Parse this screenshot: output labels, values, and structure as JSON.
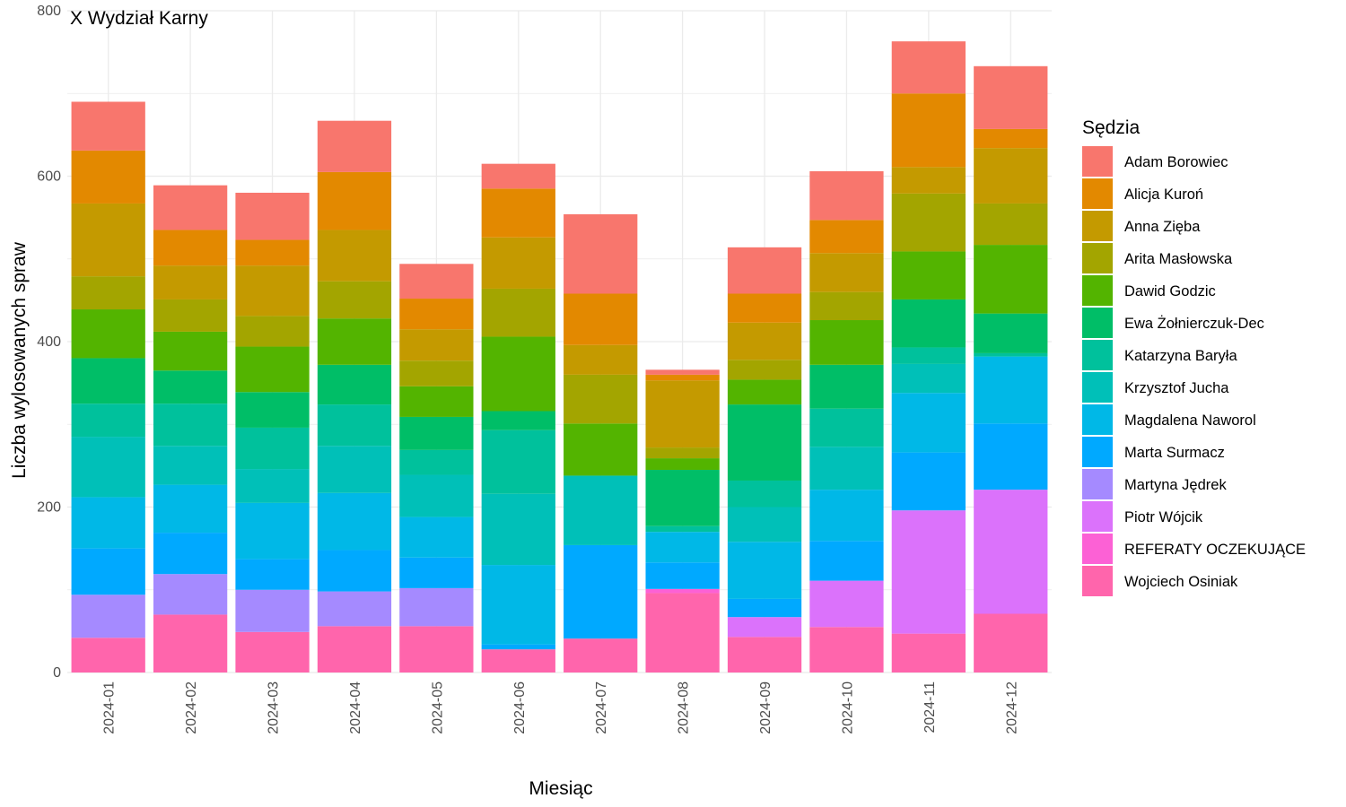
{
  "chart_data": {
    "type": "bar",
    "stacked": true,
    "title": "X Wydział Karny",
    "xlabel": "Miesiąc",
    "ylabel": "Liczba wylosowanych spraw",
    "ylim": [
      0,
      800
    ],
    "yticks": [
      0,
      200,
      400,
      600,
      800
    ],
    "grid": true,
    "legend_title": "Sędzia",
    "legend_position": "right",
    "categories": [
      "2024-01",
      "2024-02",
      "2024-03",
      "2024-04",
      "2024-05",
      "2024-06",
      "2024-07",
      "2024-08",
      "2024-09",
      "2024-10",
      "2024-11",
      "2024-12"
    ],
    "series": [
      {
        "name": "Wojciech Osiniak",
        "color": "#FF65AC",
        "values": [
          42,
          70,
          49,
          56,
          56,
          28,
          41,
          96,
          43,
          55,
          47,
          71
        ]
      },
      {
        "name": "REFERATY OCZEKUJĄCE",
        "color": "#FC61D5",
        "values": [
          0,
          0,
          0,
          0,
          0,
          0,
          0,
          5,
          0,
          0,
          0,
          0
        ]
      },
      {
        "name": "Piotr Wójcik",
        "color": "#DB72FB",
        "values": [
          0,
          0,
          0,
          0,
          0,
          0,
          0,
          0,
          24,
          56,
          149,
          150
        ]
      },
      {
        "name": "Martyna Jędrek",
        "color": "#A58AFF",
        "values": [
          52,
          49,
          51,
          42,
          46,
          0,
          0,
          0,
          0,
          0,
          0,
          0
        ]
      },
      {
        "name": "Marta Surmacz",
        "color": "#00A9FF",
        "values": [
          56,
          50,
          37,
          50,
          37,
          6,
          113,
          32,
          22,
          48,
          70,
          80
        ]
      },
      {
        "name": "Magdalena Naworol",
        "color": "#00B8E7",
        "values": [
          62,
          58,
          68,
          69,
          49,
          96,
          0,
          37,
          69,
          62,
          72,
          81
        ]
      },
      {
        "name": "Krzysztof Jucha",
        "color": "#00C0B8",
        "values": [
          73,
          47,
          41,
          57,
          51,
          86,
          84,
          0,
          42,
          52,
          35,
          0
        ]
      },
      {
        "name": "Katarzyna Baryła",
        "color": "#00C19C",
        "values": [
          40,
          51,
          50,
          50,
          30,
          77,
          0,
          7,
          32,
          46,
          20,
          4
        ]
      },
      {
        "name": "Ewa Żołnierczuk-Dec",
        "color": "#00BE67",
        "values": [
          55,
          40,
          43,
          48,
          40,
          23,
          0,
          68,
          92,
          53,
          58,
          48
        ]
      },
      {
        "name": "Dawid Godzic",
        "color": "#53B400",
        "values": [
          59,
          47,
          55,
          56,
          37,
          90,
          63,
          14,
          30,
          54,
          58,
          83
        ]
      },
      {
        "name": "Arita Masłowska",
        "color": "#A3A500",
        "values": [
          40,
          39,
          37,
          45,
          31,
          58,
          59,
          13,
          24,
          34,
          70,
          50
        ]
      },
      {
        "name": "Anna Zięba",
        "color": "#C49A00",
        "values": [
          88,
          41,
          61,
          62,
          38,
          62,
          36,
          81,
          45,
          47,
          32,
          67
        ]
      },
      {
        "name": "Alicja Kuroń",
        "color": "#E38900",
        "values": [
          64,
          43,
          31,
          70,
          37,
          59,
          62,
          7,
          35,
          40,
          89,
          23
        ]
      },
      {
        "name": "Adam Borowiec",
        "color": "#F8766D",
        "values": [
          59,
          54,
          57,
          62,
          42,
          30,
          96,
          6,
          56,
          59,
          63,
          76
        ]
      }
    ]
  }
}
